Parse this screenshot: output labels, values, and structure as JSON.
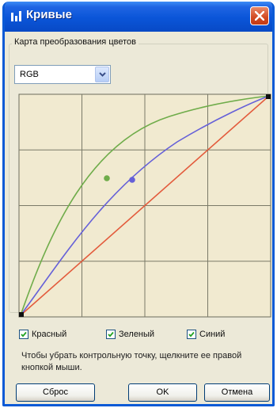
{
  "window": {
    "title": "Кривые"
  },
  "group": {
    "label": "Карта преобразования цветов"
  },
  "channel_select": {
    "value": "RGB"
  },
  "curves": {
    "background_color": "#f1ead0",
    "grid_color": "#7a7a68",
    "red_color": "#e35b3c",
    "green_color": "#6fac4a",
    "blue_color": "#6560d8"
  },
  "checkboxes": [
    {
      "label": "Красный",
      "checked": true
    },
    {
      "label": "Зеленый",
      "checked": true
    },
    {
      "label": "Синий",
      "checked": true
    }
  ],
  "hint": "Чтобы убрать контрольную точку, щелкните ее правой кнопкой мыши.",
  "buttons": {
    "reset": "Сброс",
    "ok": "OK",
    "cancel": "Отмена"
  }
}
